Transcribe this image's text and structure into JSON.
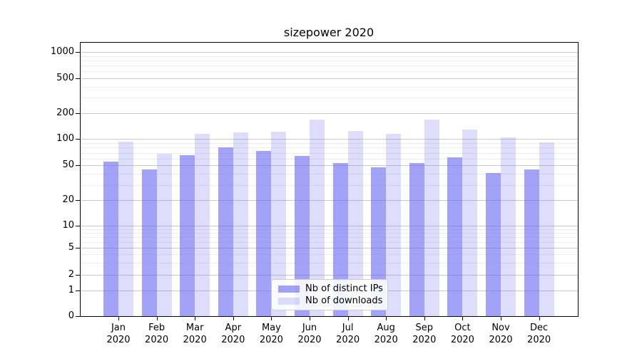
{
  "title": "sizepower 2020",
  "chart_data": {
    "type": "bar",
    "title": "sizepower 2020",
    "categories": [
      "Jan",
      "Feb",
      "Mar",
      "Apr",
      "May",
      "Jun",
      "Jul",
      "Aug",
      "Sep",
      "Oct",
      "Nov",
      "Dec"
    ],
    "category_year": "2020",
    "series": [
      {
        "name": "Nb of distinct IPs",
        "color": "rgba(105,105,240,0.62)",
        "values": [
          55,
          45,
          66,
          80,
          74,
          64,
          53,
          48,
          53,
          62,
          41,
          45
        ]
      },
      {
        "name": "Nb of downloads",
        "color": "rgba(105,105,240,0.22)",
        "values": [
          93,
          68,
          116,
          120,
          123,
          170,
          125,
          116,
          170,
          130,
          105,
          92
        ]
      }
    ],
    "yscale": "symlog",
    "y_ticks": [
      0,
      1,
      2,
      5,
      10,
      20,
      50,
      100,
      200,
      500,
      1000
    ],
    "y_minor_gridlines": [
      3,
      4,
      6,
      7,
      8,
      9,
      30,
      40,
      60,
      70,
      80,
      90,
      300,
      400,
      600,
      700,
      800,
      900
    ],
    "ylim": [
      0,
      1400
    ],
    "grid": true,
    "legend_position": "lower-center",
    "axis_color": "#000000",
    "major_grid_color": "#c9c9c9",
    "minor_grid_color": "#ededed"
  }
}
